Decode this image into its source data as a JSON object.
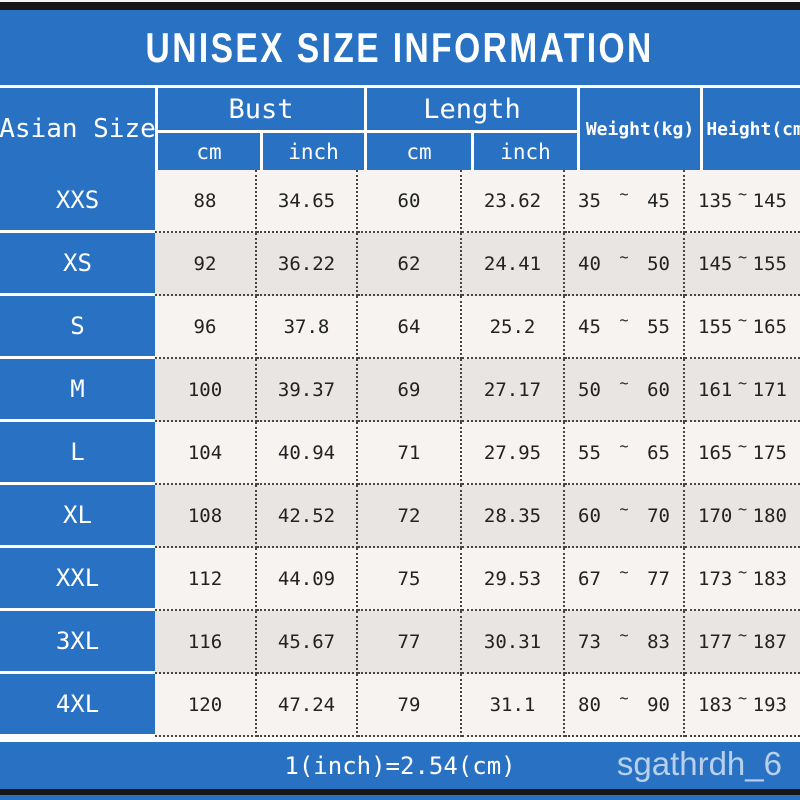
{
  "title": "UNISEX SIZE INFORMATION",
  "table": {
    "size_column_header": "Asian Size",
    "group_headers": {
      "bust": "Bust",
      "length": "Length"
    },
    "unit_headers": {
      "bust_cm": "cm",
      "bust_inch": "inch",
      "length_cm": "cm",
      "length_inch": "inch"
    },
    "weight_header": "Weight(kg)",
    "height_header": "Height(cm)",
    "tilde": "~",
    "rows": [
      {
        "size": "XXS",
        "bust_cm": "88",
        "bust_inch": "34.65",
        "length_cm": "60",
        "length_inch": "23.62",
        "weight_min": "35",
        "weight_max": "45",
        "height_min": "135",
        "height_max": "145"
      },
      {
        "size": "XS",
        "bust_cm": "92",
        "bust_inch": "36.22",
        "length_cm": "62",
        "length_inch": "24.41",
        "weight_min": "40",
        "weight_max": "50",
        "height_min": "145",
        "height_max": "155"
      },
      {
        "size": "S",
        "bust_cm": "96",
        "bust_inch": "37.8",
        "length_cm": "64",
        "length_inch": "25.2",
        "weight_min": "45",
        "weight_max": "55",
        "height_min": "155",
        "height_max": "165"
      },
      {
        "size": "M",
        "bust_cm": "100",
        "bust_inch": "39.37",
        "length_cm": "69",
        "length_inch": "27.17",
        "weight_min": "50",
        "weight_max": "60",
        "height_min": "161",
        "height_max": "171"
      },
      {
        "size": "L",
        "bust_cm": "104",
        "bust_inch": "40.94",
        "length_cm": "71",
        "length_inch": "27.95",
        "weight_min": "55",
        "weight_max": "65",
        "height_min": "165",
        "height_max": "175"
      },
      {
        "size": "XL",
        "bust_cm": "108",
        "bust_inch": "42.52",
        "length_cm": "72",
        "length_inch": "28.35",
        "weight_min": "60",
        "weight_max": "70",
        "height_min": "170",
        "height_max": "180"
      },
      {
        "size": "XXL",
        "bust_cm": "112",
        "bust_inch": "44.09",
        "length_cm": "75",
        "length_inch": "29.53",
        "weight_min": "67",
        "weight_max": "77",
        "height_min": "173",
        "height_max": "183"
      },
      {
        "size": "3XL",
        "bust_cm": "116",
        "bust_inch": "45.67",
        "length_cm": "77",
        "length_inch": "30.31",
        "weight_min": "73",
        "weight_max": "83",
        "height_min": "177",
        "height_max": "187"
      },
      {
        "size": "4XL",
        "bust_cm": "120",
        "bust_inch": "47.24",
        "length_cm": "79",
        "length_inch": "31.1",
        "weight_min": "80",
        "weight_max": "90",
        "height_min": "183",
        "height_max": "193"
      }
    ]
  },
  "footer": {
    "note": "1(inch)=2.54(cm)",
    "watermark": "sgathrdh_6"
  },
  "colors": {
    "accent_blue": "#2871c3",
    "row_light": "#f6f3f0",
    "row_alt": "#e8e5e2",
    "strip_black": "#161616",
    "text_dark": "#222222"
  },
  "chart_data": {
    "type": "table",
    "title": "UNISEX SIZE INFORMATION",
    "columns": [
      "Asian Size",
      "Bust cm",
      "Bust inch",
      "Length cm",
      "Length inch",
      "Weight(kg)",
      "Height(cm)"
    ],
    "rows": [
      [
        "XXS",
        88,
        34.65,
        60,
        23.62,
        "35~45",
        "135~145"
      ],
      [
        "XS",
        92,
        36.22,
        62,
        24.41,
        "40~50",
        "145~155"
      ],
      [
        "S",
        96,
        37.8,
        64,
        25.2,
        "45~55",
        "155~165"
      ],
      [
        "M",
        100,
        39.37,
        69,
        27.17,
        "50~60",
        "161~171"
      ],
      [
        "L",
        104,
        40.94,
        71,
        27.95,
        "55~65",
        "165~175"
      ],
      [
        "XL",
        108,
        42.52,
        72,
        28.35,
        "60~70",
        "170~180"
      ],
      [
        "XXL",
        112,
        44.09,
        75,
        29.53,
        "67~77",
        "173~183"
      ],
      [
        "3XL",
        116,
        45.67,
        77,
        30.31,
        "73~83",
        "177~187"
      ],
      [
        "4XL",
        120,
        47.24,
        79,
        31.1,
        "80~90",
        "183~193"
      ]
    ],
    "note": "1(inch)=2.54(cm)"
  }
}
